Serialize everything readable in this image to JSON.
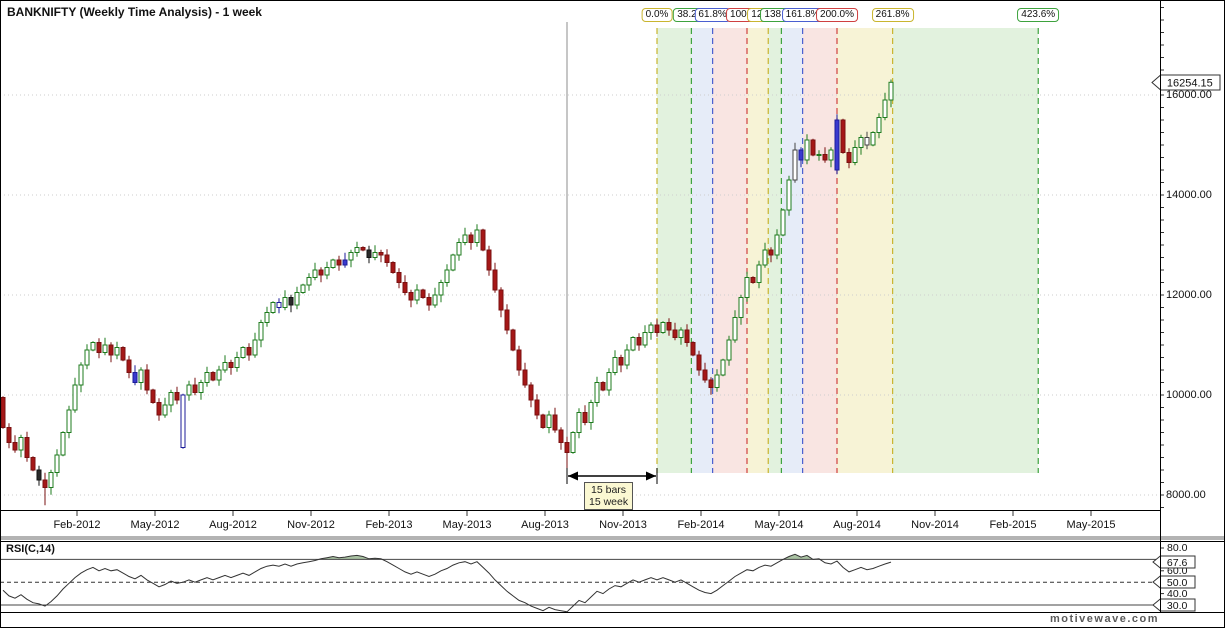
{
  "app": {
    "watermark": "motivewave.com"
  },
  "chart": {
    "title": "BANKNIFTY (Weekly Time Analysis) - 1 week",
    "instrument": "BANKNIFTY",
    "study": "Weekly Time Analysis",
    "timeframe": "1 week",
    "last_price": "16254.15"
  },
  "measurement": {
    "line1": "15 bars",
    "line2": "15 week",
    "from_week": 94,
    "to_week": 109
  },
  "price_axis": {
    "labels": [
      {
        "text": "16000.00",
        "value": 16000
      },
      {
        "text": "14000.00",
        "value": 14000
      },
      {
        "text": "12000.00",
        "value": 12000
      },
      {
        "text": "10000.00",
        "value": 10000
      },
      {
        "text": "8000.00",
        "value": 8000
      }
    ]
  },
  "time_axis": {
    "labels": [
      "Feb-2012",
      "May-2012",
      "Aug-2012",
      "Nov-2012",
      "Feb-2013",
      "May-2013",
      "Aug-2013",
      "Nov-2013",
      "Feb-2014",
      "May-2014",
      "Aug-2014",
      "Nov-2014",
      "Feb-2015",
      "May-2015"
    ]
  },
  "fib_time": {
    "origin_week": 109,
    "unit_weeks": 15,
    "percents": [
      0.0,
      38.2,
      61.8,
      100.0,
      123.6,
      138.2,
      161.8,
      200.0,
      261.8,
      423.6
    ],
    "labels": [
      "0.0%",
      "38.2%",
      "61.8%",
      "100.0%",
      "123.6%",
      "138.2%",
      "161.8%",
      "200.0%",
      "261.8%",
      "423.6%"
    ],
    "line_colors": [
      "#c9b52f",
      "#3da23d",
      "#4a5fd0",
      "#cf4040"
    ],
    "band_fills": [
      "#e2f2de",
      "#e6ecf8",
      "#f9e5e2",
      "#f7f3d6"
    ]
  },
  "rsi_axis": {
    "plain": [
      {
        "text": "80.0",
        "value": 80
      },
      {
        "text": "60.0",
        "value": 60
      },
      {
        "text": "40.0",
        "value": 40
      }
    ],
    "bubbles": [
      {
        "text": "67.6",
        "value": 67.6
      },
      {
        "text": "50.0",
        "value": 50
      },
      {
        "text": "30.0",
        "value": 30
      }
    ]
  },
  "chart_data": [
    {
      "type": "candlestick",
      "title": "BANKNIFTY (Weekly Time Analysis) - 1 week",
      "interval": "1 week",
      "x_tick_labels": [
        "Feb-2012",
        "May-2012",
        "Aug-2012",
        "Nov-2012",
        "Feb-2013",
        "May-2013",
        "Aug-2013",
        "Nov-2013",
        "Feb-2014",
        "May-2014",
        "Aug-2014",
        "Nov-2014",
        "Feb-2015",
        "May-2015"
      ],
      "y_ticks": [
        16000,
        14000,
        12000,
        10000,
        8000
      ],
      "ylim": [
        7800,
        16600
      ],
      "last_price": 16254.15,
      "first_open": 9950,
      "closes": [
        9350,
        9050,
        8900,
        9150,
        8750,
        8500,
        8300,
        8150,
        8450,
        8800,
        9250,
        9700,
        10200,
        10600,
        10900,
        11050,
        10850,
        11000,
        10800,
        10950,
        10700,
        10450,
        10250,
        10500,
        10100,
        9850,
        9600,
        9800,
        10050,
        9900,
        10000,
        10200,
        10050,
        10250,
        10450,
        10300,
        10500,
        10650,
        10550,
        10750,
        10950,
        10800,
        11100,
        11450,
        11650,
        11850,
        11750,
        11950,
        11800,
        12050,
        12200,
        12350,
        12500,
        12400,
        12550,
        12700,
        12600,
        12700,
        12850,
        12950,
        12900,
        12750,
        12850,
        12800,
        12650,
        12450,
        12250,
        12050,
        11900,
        12100,
        11950,
        11800,
        12000,
        12250,
        12500,
        12800,
        13050,
        13200,
        13050,
        13300,
        12900,
        12500,
        12100,
        11700,
        11300,
        10900,
        10500,
        10200,
        9900,
        9600,
        9350,
        9600,
        9300,
        9050,
        8850,
        9250,
        9650,
        9450,
        9850,
        10250,
        10100,
        10450,
        10750,
        10600,
        10900,
        11150,
        11000,
        11250,
        11400,
        11250,
        11450,
        11300,
        11150,
        11300,
        11050,
        10800,
        10500,
        10300,
        10150,
        10400,
        10700,
        11100,
        11550,
        11950,
        12350,
        12250,
        12600,
        12900,
        12800,
        13200,
        13700,
        14300,
        14900,
        14700,
        15100,
        14800,
        14810,
        14700,
        14900,
        15500,
        14850,
        14650,
        14950,
        15150,
        15000,
        15250,
        15550,
        15900,
        16254.15
      ],
      "special_candles": [
        {
          "week": 6,
          "style": "black"
        },
        {
          "week": 7,
          "low_ext": 300
        },
        {
          "week": 22,
          "style": "blue"
        },
        {
          "week": 30,
          "style": "blue_hollow",
          "open": 8950
        },
        {
          "week": 46,
          "style": "blue_hollow"
        },
        {
          "week": 48,
          "style": "black"
        },
        {
          "week": 57,
          "style": "blue"
        },
        {
          "week": 61,
          "style": "black"
        },
        {
          "week": 94,
          "low_ext": 250
        },
        {
          "week": 132,
          "style": "white"
        },
        {
          "week": 133,
          "style": "blue"
        },
        {
          "week": 139,
          "style": "blue",
          "open": 14500
        },
        {
          "week": 144,
          "style": "white"
        }
      ],
      "fib_time_zones": {
        "origin_week": 109,
        "unit_weeks": 15,
        "percents": [
          0.0,
          38.2,
          61.8,
          100.0,
          123.6,
          138.2,
          161.8,
          200.0,
          261.8,
          423.6
        ]
      },
      "measurement": {
        "from_week": 94,
        "to_week": 109,
        "bars": 15,
        "label": "15 bars / 15 week"
      }
    },
    {
      "type": "line",
      "title": "RSI(C,14)",
      "guides": [
        70,
        50,
        30
      ],
      "guide_styles": [
        "solid",
        "dashed",
        "solid"
      ],
      "last_value": 67.6,
      "ylim": [
        22,
        84
      ],
      "overbought_fill_above": 70,
      "values": [
        43,
        38,
        36,
        39,
        35,
        32,
        31,
        29,
        33,
        38,
        44,
        49,
        54,
        58,
        61,
        63,
        60,
        62,
        60,
        61,
        58,
        55,
        53,
        56,
        52,
        49,
        46,
        48,
        51,
        49,
        50,
        52,
        50,
        52,
        54,
        52,
        54,
        56,
        54,
        56,
        58,
        56,
        59,
        62,
        64,
        65,
        64,
        66,
        64,
        66,
        67,
        68,
        69,
        70.5,
        71.5,
        72.5,
        71.5,
        72,
        73,
        73.5,
        72.5,
        70.5,
        71,
        70.5,
        68,
        65,
        62,
        59,
        57,
        59,
        57,
        55,
        57,
        60,
        62,
        65,
        67,
        68,
        66,
        68,
        63,
        58,
        52,
        47,
        42,
        38,
        34,
        32,
        29,
        27,
        25,
        28,
        26,
        25,
        24,
        29,
        34,
        32,
        37,
        42,
        40,
        44,
        47,
        46,
        49,
        52,
        50,
        52,
        54,
        52,
        54,
        52,
        50,
        52,
        49,
        46,
        43,
        41,
        40,
        43,
        47,
        51,
        55,
        58,
        61,
        60,
        63,
        65,
        64,
        67,
        70,
        72.5,
        74.5,
        72,
        73.5,
        70,
        70.5,
        67,
        66,
        68.5,
        63,
        59,
        61,
        63,
        61,
        62,
        64,
        66,
        67.6
      ]
    }
  ],
  "colors": {
    "candle_up_stroke": "#1e7b1e",
    "candle_down_fill": "#a51717",
    "candle_down_stroke": "#7a1010",
    "candle_blue_fill": "#3939cf",
    "candle_blue_stroke": "#1d1d99",
    "candle_black": "#2a2a2a",
    "rsi_fill": "#a9c2a2",
    "cursor_line": "#8c8c8c"
  }
}
